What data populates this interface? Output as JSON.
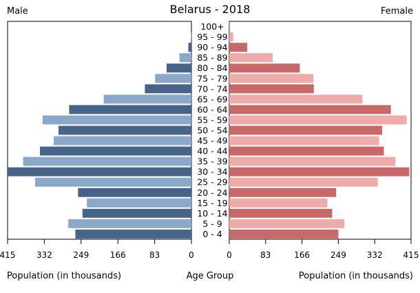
{
  "chart_data": {
    "type": "bar",
    "title": "Belarus - 2018",
    "left_label": "Male",
    "right_label": "Female",
    "x_label_left": "Population (in thousands)",
    "x_label_center": "Age Group",
    "x_label_right": "Population (in thousands)",
    "xlim": [
      0,
      415
    ],
    "x_ticks": [
      415,
      332,
      249,
      166,
      83,
      0
    ],
    "x_ticks_right": [
      0,
      83,
      166,
      249,
      332,
      415
    ],
    "categories": [
      "0 - 4",
      "5 - 9",
      "10 - 14",
      "15 - 19",
      "20 - 24",
      "25 - 29",
      "30 - 34",
      "35 - 39",
      "40 - 44",
      "45 - 49",
      "50 - 54",
      "55 - 59",
      "60 - 64",
      "65 - 69",
      "70 - 74",
      "75 - 79",
      "80 - 84",
      "85 - 89",
      "90 - 94",
      "95 - 99",
      "100+"
    ],
    "series": [
      {
        "name": "Male",
        "values": [
          262,
          278,
          246,
          236,
          256,
          353,
          415,
          380,
          342,
          311,
          300,
          336,
          276,
          198,
          105,
          82,
          56,
          27,
          7,
          1,
          0
        ]
      },
      {
        "name": "Female",
        "values": [
          249,
          263,
          235,
          224,
          244,
          339,
          411,
          379,
          353,
          342,
          349,
          405,
          369,
          304,
          193,
          192,
          161,
          99,
          41,
          9,
          1
        ]
      }
    ],
    "colors": {
      "male_dark": "#46648A",
      "male_light": "#8AA9CA",
      "female_dark": "#C86868",
      "female_light": "#EFAAAA"
    }
  }
}
